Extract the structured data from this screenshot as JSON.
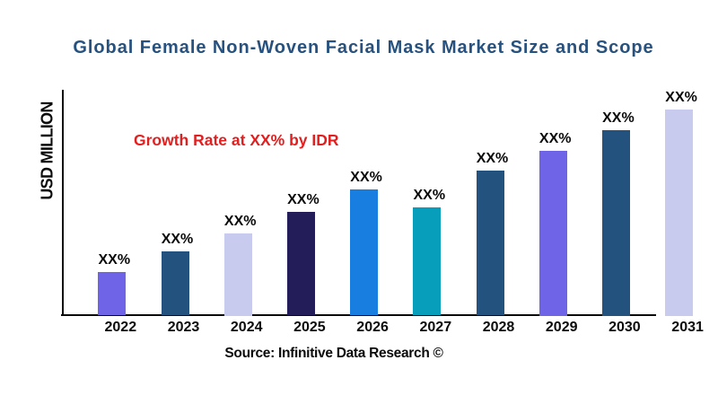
{
  "title": "Global Female Non-Woven Facial Mask Market Size and Scope",
  "annotation": "Growth Rate at XX% by IDR",
  "source_line": "Source: Infinitive Data Research ©",
  "colors": {
    "title": "#27517E",
    "annotation": "#E02020",
    "axis": "#0b0b0b"
  },
  "chart_data": {
    "type": "bar",
    "title": "Global Female Non-Woven Facial Mask Market Size and Scope",
    "xlabel": "",
    "ylabel": "USD MILLION",
    "categories": [
      "2022",
      "2023",
      "2024",
      "2025",
      "2026",
      "2027",
      "2028",
      "2029",
      "2030",
      "2031"
    ],
    "values_relative": [
      20.9,
      30.9,
      40.0,
      50.4,
      60.9,
      52.6,
      70.4,
      80.0,
      90.0,
      100.0
    ],
    "bar_labels": [
      "XX%",
      "XX%",
      "XX%",
      "XX%",
      "XX%",
      "XX%",
      "XX%",
      "XX%",
      "XX%",
      "XX%"
    ],
    "bar_colors": [
      "#6F63E8",
      "#24527F",
      "#C8CBEE",
      "#231D59",
      "#187FE0",
      "#079EBB",
      "#24527F",
      "#6F63E8",
      "#24527F",
      "#C8CBEE"
    ],
    "annotation": "Growth Rate at XX% by IDR",
    "grid": false,
    "legend": false
  }
}
